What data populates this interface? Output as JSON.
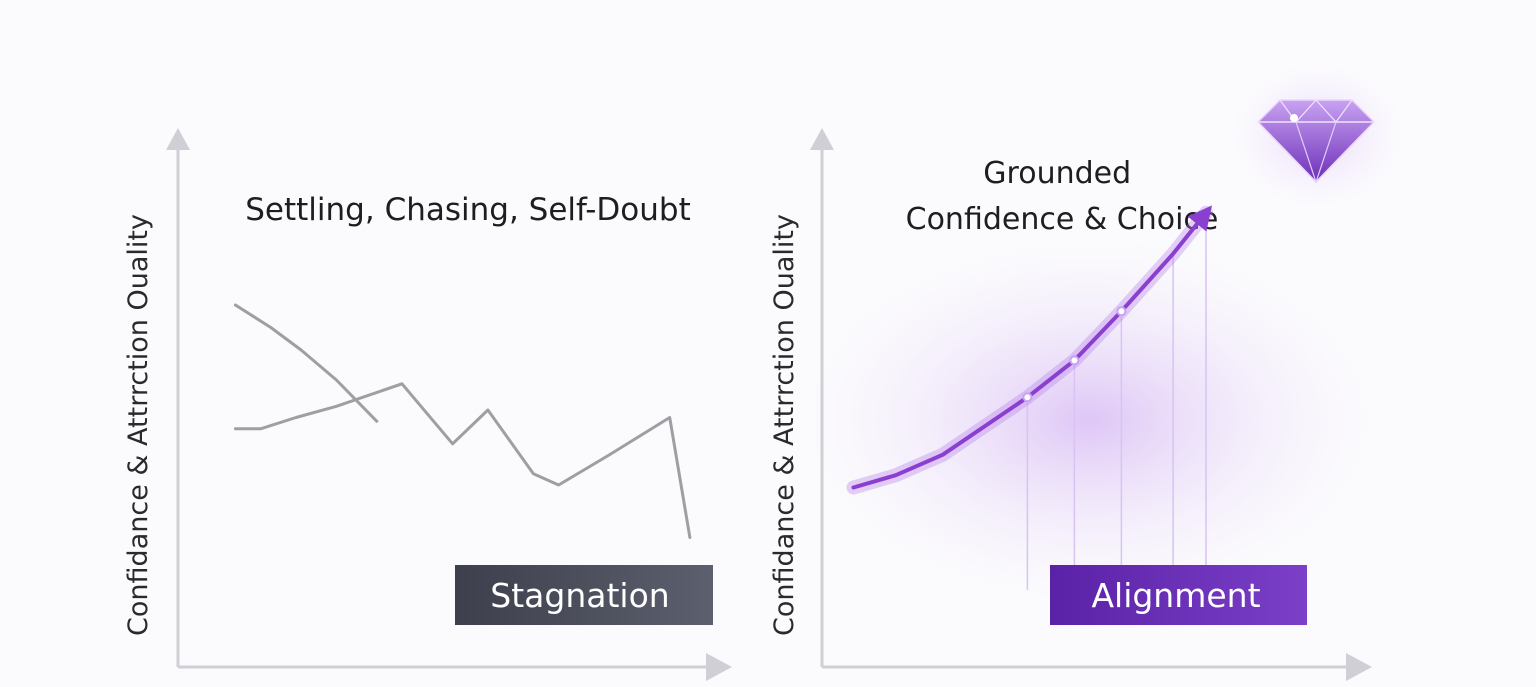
{
  "charts": [
    {
      "id": "stagnation",
      "chart_data": {
        "type": "line",
        "ylabel": "Confidance & Attrrction Ouality",
        "xlabel": "",
        "annotation": "Settling, Chasing, Self-Doubt",
        "badge": "Stagnation",
        "xlim": [
          0,
          100
        ],
        "ylim": [
          0,
          100
        ],
        "series": [
          {
            "x": [
              8,
              15,
              21,
              28,
              36
            ],
            "y": [
              76,
              70,
              64,
              56,
              45
            ]
          },
          {
            "x": [
              8,
              13,
              20,
              28,
              41,
              51,
              58,
              67,
              72,
              82,
              94,
              98
            ],
            "y": [
              43,
              43,
              46,
              49,
              55,
              39,
              48,
              31,
              28,
              36,
              46,
              14
            ]
          }
        ]
      },
      "colors": {
        "line": "#9e9ea4",
        "badge_from": "#3d3f4c",
        "badge_to": "#5c5f6d",
        "axis": "#cfcfd5"
      }
    },
    {
      "id": "alignment",
      "chart_data": {
        "type": "line",
        "ylabel": "Confidance & Attrrction Ouality",
        "xlabel": "",
        "annotation": "Grounded\nConfidence & Choice",
        "badge": "Alignment",
        "xlim": [
          0,
          100
        ],
        "ylim": [
          0,
          100
        ],
        "series": [
          {
            "x": [
              5,
              14,
              24,
              33,
              42,
              52,
              62,
              73,
              80
            ],
            "y": [
              25,
              28,
              33,
              40,
              47,
              56,
              68,
              82,
              92
            ]
          }
        ],
        "end_marker": "diamond-icon"
      },
      "colors": {
        "line": "#8a3fd0",
        "glow": "#b57be8",
        "badge_from": "#5a22a6",
        "badge_to": "#7b3fc8",
        "axis": "#cfcfd5",
        "diamond": "#9a5be0"
      }
    }
  ]
}
